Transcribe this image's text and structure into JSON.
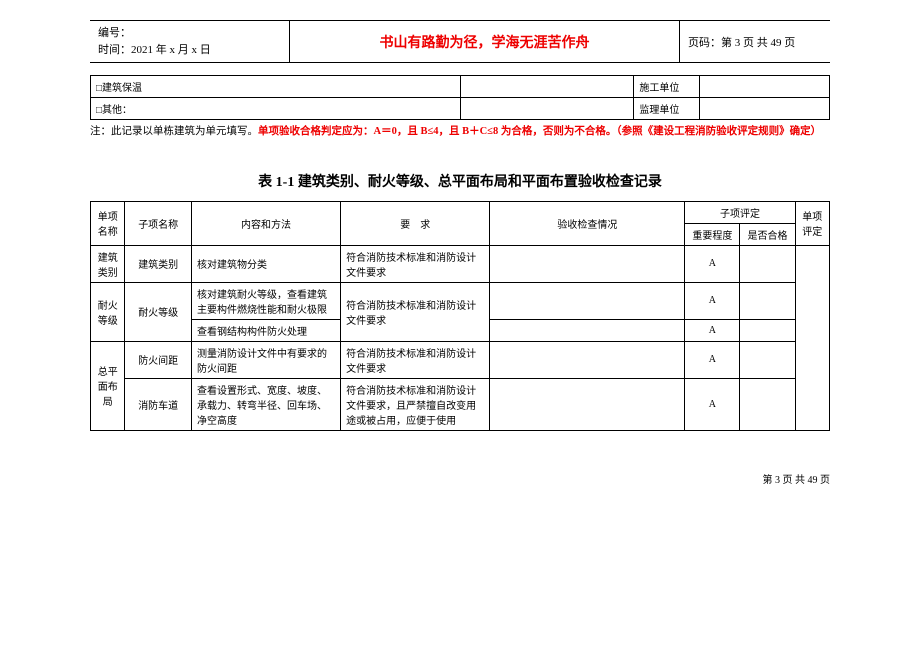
{
  "header": {
    "numbering_label": "编号：",
    "time_label": "时间：",
    "time_value": "2021 年 x 月 x 日",
    "motto": "书山有路勤为径，学海无涯苦作舟",
    "page_label": "页码：第 3 页 共 49 页"
  },
  "small_table": {
    "rows": [
      {
        "c1": "□建筑保温",
        "c2": "",
        "c3": "施工单位",
        "c4": ""
      },
      {
        "c1": "□其他：",
        "c2": "",
        "c3": "监理单位",
        "c4": ""
      }
    ],
    "col_widths": {
      "c1": "340px",
      "c2": "160px",
      "c3": "60px",
      "c4": "120px"
    }
  },
  "note": {
    "prefix": "注：此记录以单栋建筑为单元填写。",
    "red_part": "单项验收合格判定应为：A＝0，且 B≤4，且 B＋C≤8 为合格，否则为不合格。（参照《建设工程消防验收评定规则》确定）"
  },
  "table_title": "表 1-1 建筑类别、耐火等级、总平面布局和平面布置验收检查记录",
  "main_table": {
    "headers": {
      "col_name": "单项名称",
      "col_sub": "子项名称",
      "col_method": "内容和方法",
      "col_req": "要　求",
      "col_check": "验收检查情况",
      "col_zxpd": "子项评定",
      "col_imp": "重要程度",
      "col_pass": "是否合格",
      "col_eval": "单项评定"
    },
    "groups": [
      {
        "name": "建筑类别",
        "rows": [
          {
            "sub": "建筑类别",
            "method": "核对建筑物分类",
            "req": "符合消防技术标准和消防设计文件要求",
            "check": "",
            "imp": "A",
            "pass": ""
          }
        ]
      },
      {
        "name": "耐火等级",
        "rows": [
          {
            "sub": "耐火等级",
            "sub_rowspan": 2,
            "method": "核对建筑耐火等级，查看建筑主要构件燃烧性能和耐火极限",
            "req": "符合消防技术标准和消防设计文件要求",
            "req_rowspan": 2,
            "check": "",
            "imp": "A",
            "pass": ""
          },
          {
            "method": "查看钢结构构件防火处理",
            "check": "",
            "imp": "A",
            "pass": ""
          }
        ]
      },
      {
        "name": "总平面布局",
        "rows": [
          {
            "sub": "防火间距",
            "method": "测量消防设计文件中有要求的防火间距",
            "req": "符合消防技术标准和消防设计文件要求",
            "check": "",
            "imp": "A",
            "pass": ""
          },
          {
            "sub": "消防车道",
            "method": "查看设置形式、宽度、坡度、承载力、转弯半径、回车场、净空高度",
            "req": "符合消防技术标准和消防设计文件要求，且严禁擅自改变用途或被占用，应便于使用",
            "check": "",
            "imp": "A",
            "pass": ""
          }
        ]
      }
    ]
  },
  "footer": "第 3 页 共 49 页"
}
